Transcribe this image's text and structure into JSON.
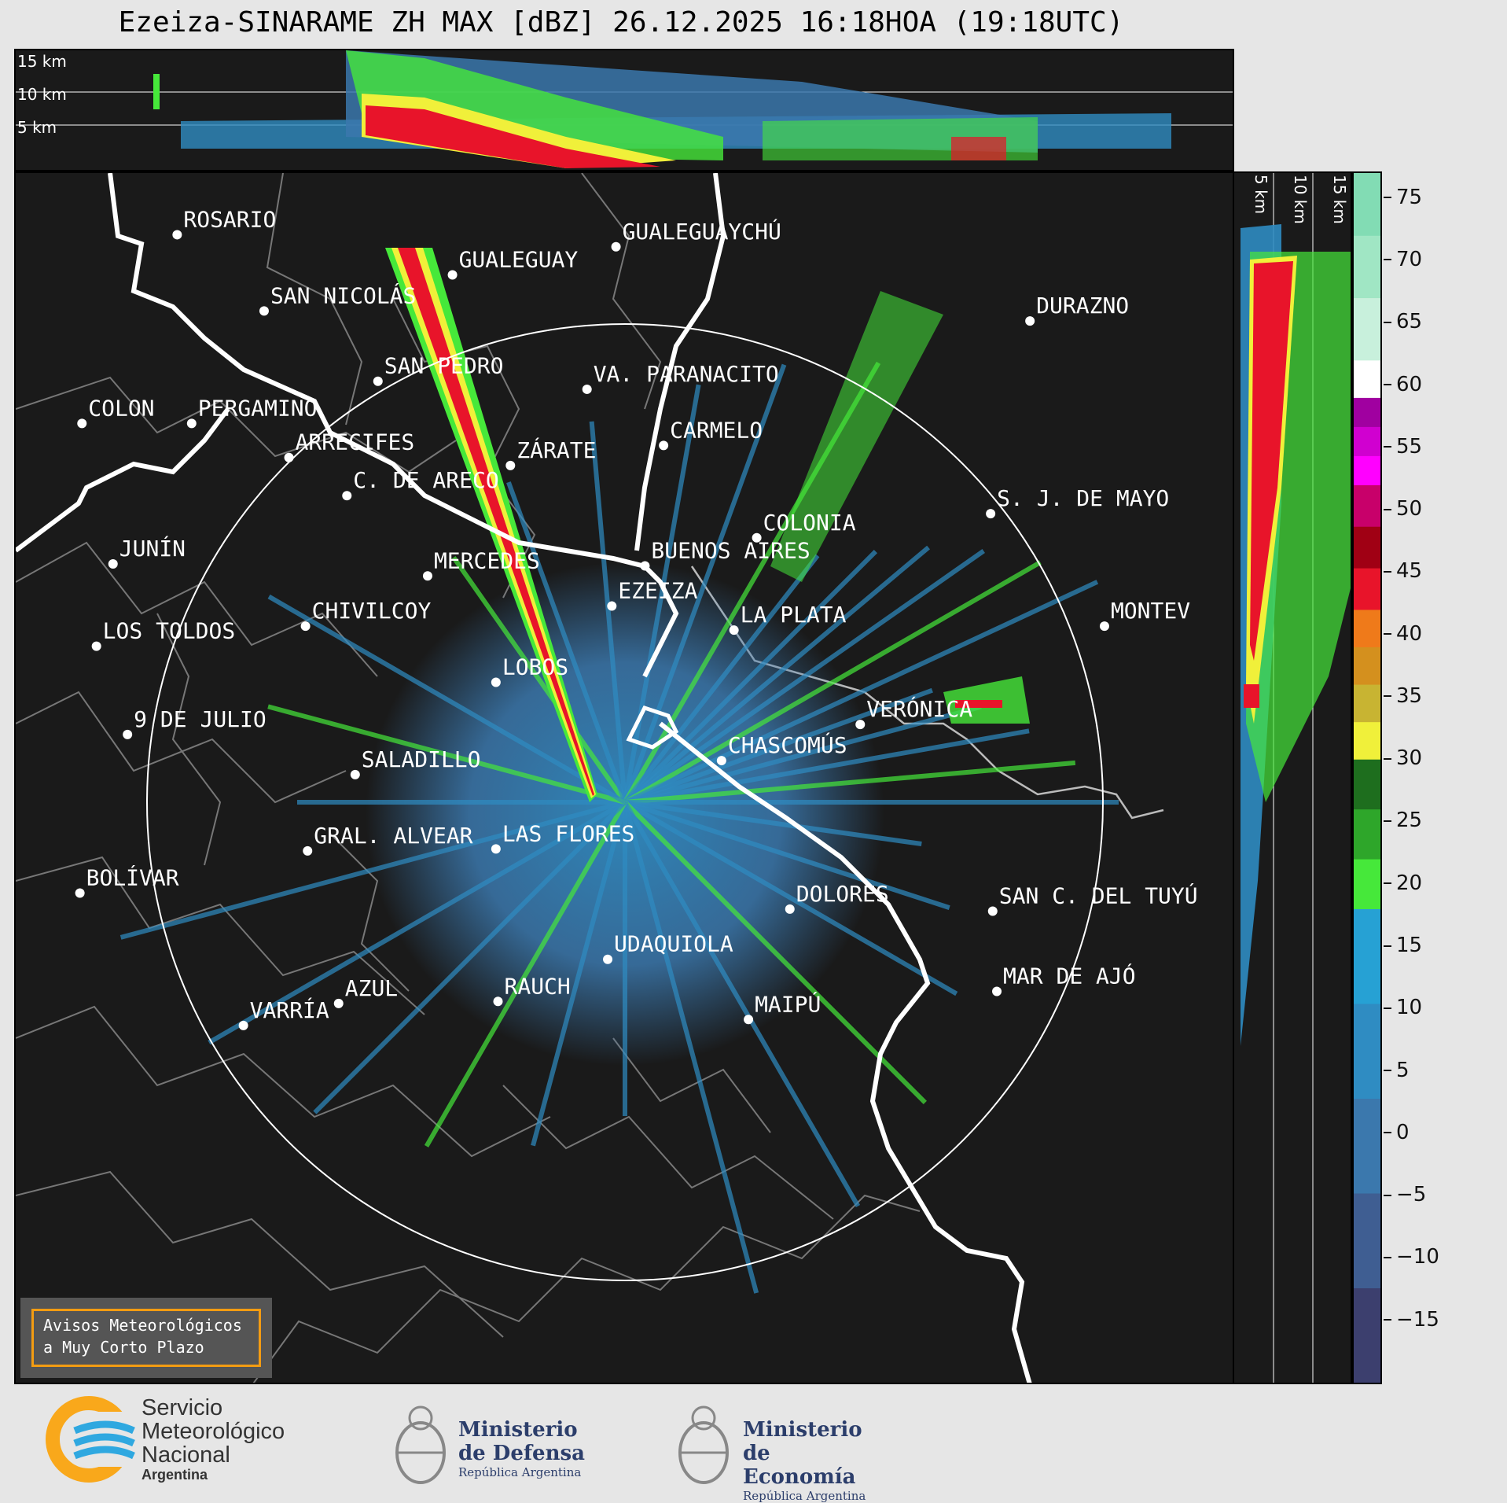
{
  "title": "Ezeiza-SINARAME ZH MAX [dBZ] 26.12.2025 16:18HOA (19:18UTC)",
  "top_panel": {
    "altitudes": [
      "15 km",
      "10 km",
      "5 km"
    ]
  },
  "side_panel": {
    "altitudes": [
      "5 km",
      "10 km",
      "15 km"
    ]
  },
  "cities": [
    {
      "name": "ROSARIO",
      "lon": -60.64,
      "lat": -32.95
    },
    {
      "name": "GUALEGUAYCHÚ",
      "lon": -58.52,
      "lat": -33.01
    },
    {
      "name": "GUALEGUAY",
      "lon": -59.31,
      "lat": -33.15
    },
    {
      "name": "SAN NICOLÁS",
      "lon": -60.22,
      "lat": -33.33
    },
    {
      "name": "DURAZNO",
      "lon": -56.52,
      "lat": -33.38
    },
    {
      "name": "SAN PEDRO",
      "lon": -59.67,
      "lat": -33.68
    },
    {
      "name": "VA. PARANACITO",
      "lon": -58.66,
      "lat": -33.72
    },
    {
      "name": "COLON",
      "lon": -61.1,
      "lat": -33.89
    },
    {
      "name": "PERGAMINO",
      "lon": -60.57,
      "lat": -33.89
    },
    {
      "name": "CARMELO",
      "lon": -58.29,
      "lat": -34.0
    },
    {
      "name": "ARRECIFES",
      "lon": -60.1,
      "lat": -34.06
    },
    {
      "name": "ZÁRATE",
      "lon": -59.03,
      "lat": -34.1
    },
    {
      "name": "S. J. DE MAYO",
      "lon": -56.71,
      "lat": -34.34
    },
    {
      "name": "C. DE ARECO",
      "lon": -59.82,
      "lat": -34.25
    },
    {
      "name": "COLONIA",
      "lon": -57.84,
      "lat": -34.46
    },
    {
      "name": "BUENOS AIRES",
      "lon": -58.38,
      "lat": -34.6
    },
    {
      "name": "JUNÍN",
      "lon": -60.95,
      "lat": -34.59
    },
    {
      "name": "MERCEDES",
      "lon": -59.43,
      "lat": -34.65
    },
    {
      "name": "EZEIZA",
      "lon": -58.54,
      "lat": -34.8
    },
    {
      "name": "CHIVILCOY",
      "lon": -60.02,
      "lat": -34.9
    },
    {
      "name": "MONTEVIDEO",
      "display": "MONTEV",
      "lon": -56.16,
      "lat": -34.9
    },
    {
      "name": "LA PLATA",
      "lon": -57.95,
      "lat": -34.92
    },
    {
      "name": "LOS TOLDOS",
      "lon": -61.03,
      "lat": -35.0
    },
    {
      "name": "LOBOS",
      "lon": -59.1,
      "lat": -35.18
    },
    {
      "name": "VERÓNICA",
      "lon": -57.34,
      "lat": -35.39
    },
    {
      "name": "9 DE JULIO",
      "lon": -60.88,
      "lat": -35.44
    },
    {
      "name": "CHASCOMÚS",
      "lon": -58.01,
      "lat": -35.57
    },
    {
      "name": "SALADILLO",
      "lon": -59.78,
      "lat": -35.64
    },
    {
      "name": "GRAL. ALVEAR",
      "lon": -60.01,
      "lat": -36.02
    },
    {
      "name": "LAS FLORES",
      "lon": -59.1,
      "lat": -36.01
    },
    {
      "name": "BOLÍVAR",
      "lon": -61.11,
      "lat": -36.23
    },
    {
      "name": "DOLORES",
      "lon": -57.68,
      "lat": -36.31
    },
    {
      "name": "SAN C. DEL TUYÚ",
      "lon": -56.7,
      "lat": -36.32
    },
    {
      "name": "UDAQUIOLA",
      "lon": -58.56,
      "lat": -36.56
    },
    {
      "name": "RAUCH",
      "lon": -59.09,
      "lat": -36.77
    },
    {
      "name": "AZUL",
      "lon": -59.86,
      "lat": -36.78
    },
    {
      "name": "MAR DE AJÓ",
      "lon": -56.68,
      "lat": -36.72
    },
    {
      "name": "OLAVARRÍA",
      "display": "VARRÍA",
      "lon": -60.32,
      "lat": -36.89
    },
    {
      "name": "MAIPÚ",
      "lon": -57.88,
      "lat": -36.86
    }
  ],
  "alert": {
    "line1": "Avisos Meteorológicos",
    "line2": "a Muy Corto Plazo"
  },
  "colorbar": {
    "label": "dBZ",
    "range": [
      -20,
      77
    ],
    "ticks": [
      "75",
      "70",
      "65",
      "60",
      "55",
      "50",
      "45",
      "40",
      "35",
      "30",
      "25",
      "20",
      "15",
      "10",
      "5",
      "0",
      "−5",
      "−10",
      "−15"
    ],
    "bands": [
      {
        "from": -20,
        "to": 18,
        "colors": [
          "#3c3f6e",
          "#3f5e92",
          "#3b78ad",
          "#2f8cc2",
          "#26a1d4"
        ]
      },
      {
        "from": 18,
        "to": 30,
        "colors": [
          "#46e83a",
          "#2ea62a",
          "#1e6e1e"
        ]
      },
      {
        "from": 30,
        "to": 42,
        "colors": [
          "#f0f03a",
          "#c8b432",
          "#d4901e",
          "#ef7a1a"
        ]
      },
      {
        "from": 42,
        "to": 52,
        "colors": [
          "#e8142a",
          "#a00014",
          "#c8006a"
        ]
      },
      {
        "from": 52,
        "to": 59,
        "colors": [
          "#ff00ff",
          "#d000d0",
          "#a000a0"
        ]
      },
      {
        "from": 59,
        "to": 62,
        "colors": [
          "#ffffff"
        ]
      },
      {
        "from": 62,
        "to": 77,
        "colors": [
          "#c8f0dc",
          "#a0e6c4",
          "#82dcb4"
        ]
      }
    ]
  },
  "logos": {
    "smn": {
      "line1": "Servicio",
      "line2": "Meteorológico",
      "line3": "Nacional",
      "line4": "Argentina"
    },
    "defensa": {
      "line1": "Ministerio",
      "line2": "de Defensa",
      "line3": "República Argentina"
    },
    "economia": {
      "line1": "Ministerio",
      "line2": "de Economía",
      "line3": "República Argentina"
    },
    "colors": {
      "smn_blue": "#2fa8e0",
      "smn_orange": "#f9a81b",
      "ministry": "#2c3e6b"
    }
  }
}
